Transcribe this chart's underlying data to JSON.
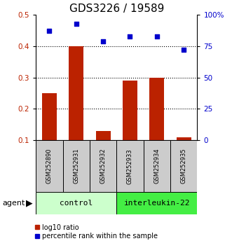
{
  "title": "GDS3226 / 19589",
  "samples": [
    "GSM252890",
    "GSM252931",
    "GSM252932",
    "GSM252933",
    "GSM252934",
    "GSM252935"
  ],
  "log10_ratio": [
    0.25,
    0.4,
    0.13,
    0.29,
    0.3,
    0.11
  ],
  "percentile_rank": [
    87,
    93,
    79,
    83,
    83,
    72
  ],
  "ylim_left": [
    0.1,
    0.5
  ],
  "ylim_right": [
    0,
    100
  ],
  "yticks_left": [
    0.1,
    0.2,
    0.3,
    0.4,
    0.5
  ],
  "yticks_right": [
    0,
    25,
    50,
    75,
    100
  ],
  "ytick_labels_right": [
    "0",
    "25",
    "50",
    "75",
    "100%"
  ],
  "bar_color": "#bb2200",
  "scatter_color": "#0000cc",
  "group_control_color": "#ccffcc",
  "group_il22_color": "#44ee44",
  "group_control_label": "control",
  "group_il22_label": "interleukin-22",
  "sample_box_color": "#cccccc",
  "agent_label": "agent",
  "legend_bar_label": "log10 ratio",
  "legend_scatter_label": "percentile rank within the sample",
  "title_fontsize": 11,
  "tick_fontsize": 7.5,
  "sample_fontsize": 6,
  "group_fontsize": 8,
  "legend_fontsize": 7
}
